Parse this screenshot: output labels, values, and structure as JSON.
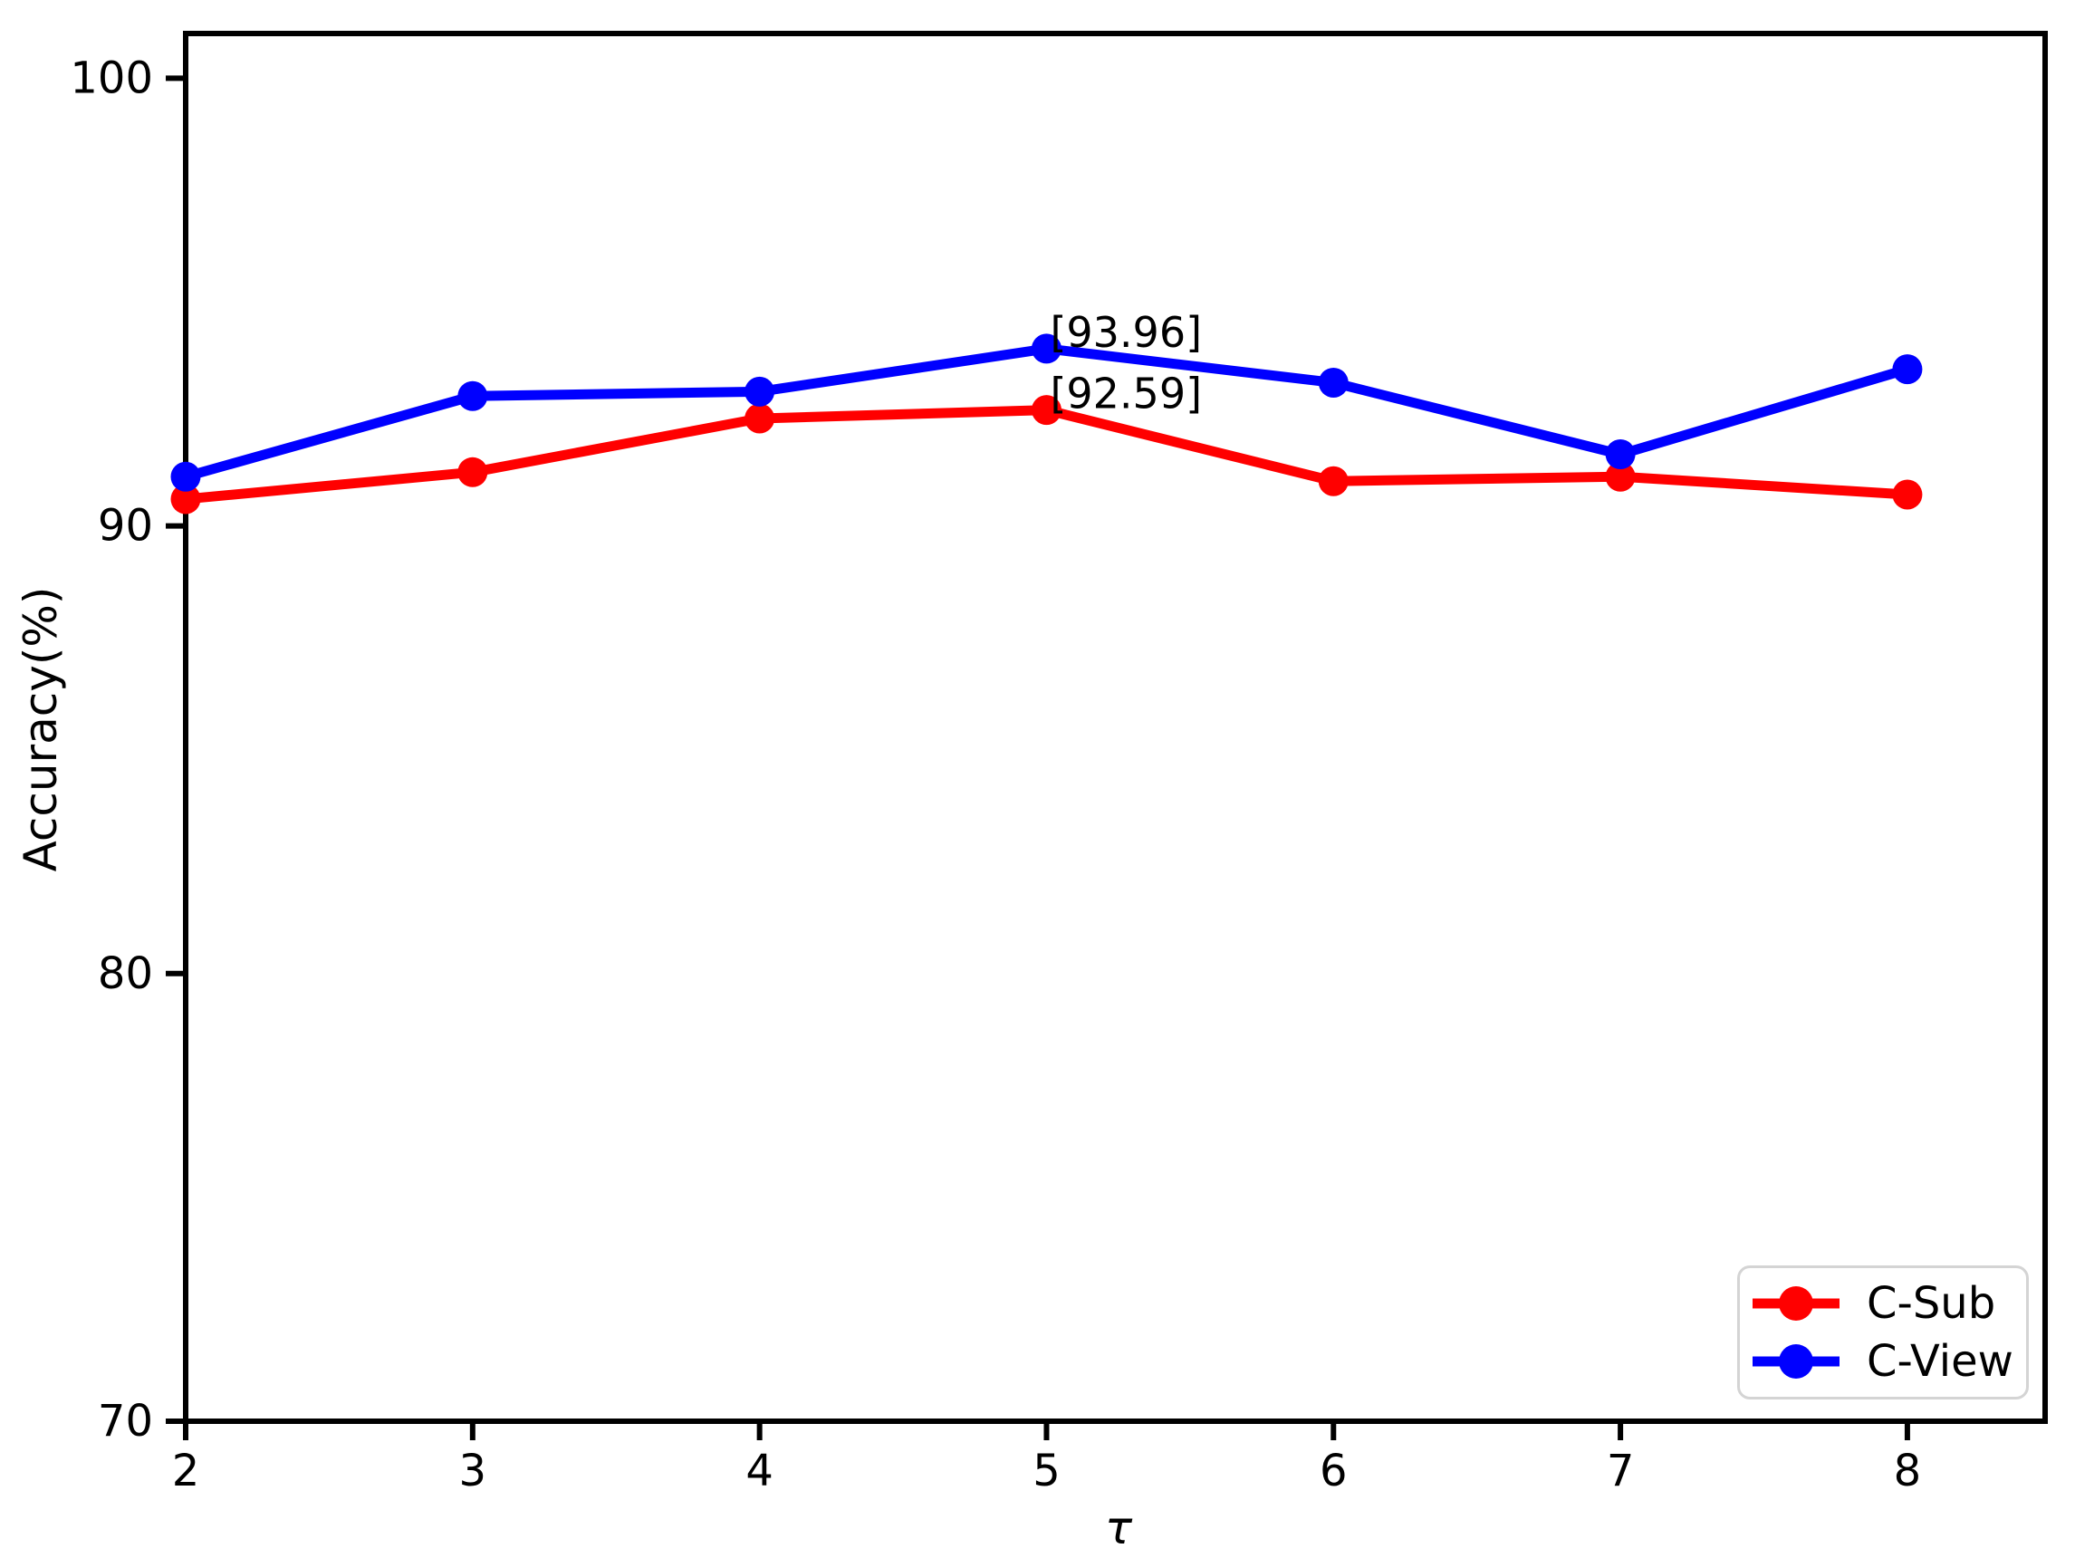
{
  "chart_data": {
    "type": "line",
    "title": "",
    "xlabel": "τ",
    "ylabel": "Accuracy(%)",
    "x": [
      2,
      3,
      4,
      5,
      6,
      7,
      8
    ],
    "xlim": [
      2,
      8.48
    ],
    "ylim": [
      70,
      101.0
    ],
    "xticks": [
      "2",
      "3",
      "4",
      "5",
      "6",
      "7",
      "8"
    ],
    "xtick_values": [
      2,
      3,
      4,
      5,
      6,
      7,
      8
    ],
    "yticks": [
      "70",
      "80",
      "90",
      "100"
    ],
    "ytick_values": [
      70,
      80,
      90,
      100
    ],
    "grid": false,
    "legend_position": "lower right",
    "series": [
      {
        "name": "C-Sub",
        "color": "#ff0000",
        "marker": "circle",
        "values": [
          90.6,
          91.2,
          92.4,
          92.59,
          91.0,
          91.1,
          90.7
        ]
      },
      {
        "name": "C-View",
        "color": "#0000ff",
        "marker": "circle",
        "values": [
          91.1,
          92.9,
          93.0,
          93.96,
          93.2,
          91.6,
          93.5
        ]
      }
    ],
    "annotations": [
      {
        "text": "[93.96]",
        "x": 5,
        "y": 93.96
      },
      {
        "text": "[92.59]",
        "x": 5,
        "y": 92.59
      }
    ],
    "axis_color": "#000000",
    "annotation_color": "#000000"
  }
}
